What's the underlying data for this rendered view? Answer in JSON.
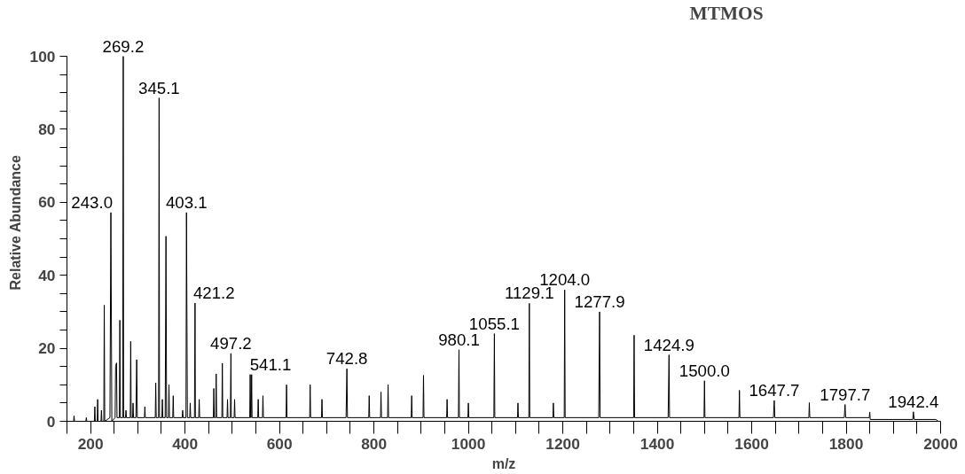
{
  "chart_data": {
    "type": "line",
    "title": "MTMOS",
    "xlabel": "m/z",
    "ylabel": "Relative Abundance",
    "xlim": [
      150,
      2000
    ],
    "xticks": [
      {
        "value": 150,
        "label": null
      },
      200,
      {
        "value": 250,
        "label": null
      },
      {
        "value": 300,
        "label": null
      },
      {
        "value": 350,
        "label": null
      },
      400,
      {
        "value": 450,
        "label": null
      },
      {
        "value": 500,
        "label": null
      },
      {
        "value": 550,
        "label": null
      },
      600,
      {
        "value": 650,
        "label": null
      },
      {
        "value": 700,
        "label": null
      },
      {
        "value": 750,
        "label": null
      },
      800,
      {
        "value": 850,
        "label": null
      },
      {
        "value": 900,
        "label": null
      },
      {
        "value": 950,
        "label": null
      },
      1000,
      {
        "value": 1050,
        "label": null
      },
      {
        "value": 1100,
        "label": null
      },
      {
        "value": 1150,
        "label": null
      },
      1200,
      {
        "value": 1250,
        "label": null
      },
      {
        "value": 1300,
        "label": null
      },
      {
        "value": 1350,
        "label": null
      },
      1400,
      {
        "value": 1450,
        "label": null
      },
      {
        "value": 1500,
        "label": null
      },
      {
        "value": 1550,
        "label": null
      },
      1600,
      {
        "value": 1650,
        "label": null
      },
      {
        "value": 1700,
        "label": null
      },
      {
        "value": 1750,
        "label": null
      },
      1800,
      {
        "value": 1850,
        "label": null
      },
      {
        "value": 1900,
        "label": null
      },
      {
        "value": 1950,
        "label": null
      },
      2000
    ],
    "ylim": [
      0,
      100
    ],
    "yticks": [
      0,
      {
        "value": 5,
        "label": null
      },
      {
        "value": 10,
        "label": null
      },
      {
        "value": 15,
        "label": null
      },
      20,
      {
        "value": 25,
        "label": null
      },
      {
        "value": 30,
        "label": null
      },
      {
        "value": 35,
        "label": null
      },
      40,
      {
        "value": 45,
        "label": null
      },
      {
        "value": 50,
        "label": null
      },
      {
        "value": 55,
        "label": null
      },
      60,
      {
        "value": 65,
        "label": null
      },
      {
        "value": 70,
        "label": null
      },
      {
        "value": 75,
        "label": null
      },
      80,
      {
        "value": 85,
        "label": null
      },
      {
        "value": 90,
        "label": null
      },
      {
        "value": 95,
        "label": null
      },
      100
    ],
    "grid": false,
    "marker": "none",
    "line_style": "solid",
    "series": [
      {
        "color": "#000000",
        "x": [
          164,
          165,
          166,
          190,
          191,
          192,
          208,
          209,
          210,
          214,
          215,
          216,
          222,
          223,
          224,
          228,
          229,
          230,
          241,
          243,
          245,
          252,
          253,
          255,
          256,
          261,
          262,
          263,
          268,
          269.2,
          270,
          274,
          275,
          276,
          284,
          285,
          286,
          289,
          290,
          291,
          296,
          297.7,
          299,
          314,
          315,
          316,
          337,
          338,
          339,
          344,
          345.1,
          346,
          351,
          352,
          353,
          358,
          359.7,
          361,
          365,
          366,
          367,
          374,
          375,
          376,
          394,
          395,
          396,
          402,
          403.1,
          405,
          410,
          411,
          412,
          420,
          421.2,
          422,
          429,
          430,
          431,
          460,
          461,
          462,
          465,
          466,
          467,
          478,
          479,
          480,
          489,
          490,
          491,
          496,
          497.2,
          498,
          504,
          505,
          506,
          537,
          538,
          539,
          540,
          541.1,
          542,
          554,
          555,
          556,
          564,
          565,
          566,
          614,
          615,
          616,
          664,
          665,
          666,
          689,
          690,
          691,
          741,
          742.8,
          744,
          789,
          790,
          791,
          814,
          815,
          816,
          829,
          830,
          831,
          879,
          880,
          881,
          904,
          905,
          906,
          954,
          955,
          956,
          979,
          980.1,
          981,
          999,
          1000,
          1001,
          1054,
          1055.1,
          1056,
          1104,
          1105,
          1106,
          1128,
          1129.1,
          1130,
          1179,
          1180,
          1181,
          1203,
          1204.0,
          1205,
          1276,
          1277.9,
          1279,
          1350,
          1351,
          1352,
          1423,
          1424.9,
          1426,
          1499,
          1500.0,
          1501,
          1573,
          1574,
          1575,
          1646,
          1647.7,
          1649,
          1721,
          1722,
          1723,
          1796,
          1797.7,
          1799,
          1849,
          1850,
          1851,
          1941,
          1942.4,
          1944,
          1990,
          1995
        ],
        "values": [
          0,
          1.5,
          0,
          0,
          1,
          0,
          0,
          4,
          0,
          0,
          6,
          0,
          0,
          3,
          0,
          0,
          31.8,
          0,
          1,
          57.2,
          0,
          1,
          15,
          16,
          1,
          1,
          27.7,
          1,
          1,
          100,
          1,
          1,
          3,
          1,
          1,
          21.9,
          1,
          1,
          5,
          1,
          1,
          16.9,
          1,
          1,
          4,
          1,
          1,
          10.5,
          1,
          1,
          88.6,
          1,
          1,
          6,
          1,
          1,
          50.7,
          1,
          1,
          10,
          1,
          1,
          7,
          1,
          1,
          3,
          1,
          1,
          57.2,
          1,
          1,
          5,
          1,
          1,
          32.4,
          1,
          1,
          6,
          1,
          1,
          9,
          1,
          1,
          13,
          1,
          1,
          15.9,
          1,
          1,
          6,
          1,
          1,
          18.6,
          1,
          1,
          6,
          1,
          1,
          12.8,
          1,
          1,
          12.8,
          1,
          1,
          6,
          1,
          1,
          7,
          1,
          1,
          10,
          1,
          1,
          10,
          1,
          1,
          6,
          1,
          1,
          14.4,
          1,
          1,
          7,
          1,
          1,
          8,
          1,
          1,
          10,
          1,
          1,
          7,
          1,
          1,
          12.6,
          1,
          1,
          6,
          1,
          1,
          19.6,
          1,
          1,
          5,
          1,
          1,
          24.0,
          1,
          1,
          5,
          1,
          1,
          32.3,
          1,
          1,
          5,
          1,
          1,
          36.0,
          1,
          1,
          30.0,
          1,
          1,
          23.6,
          1,
          1,
          18.2,
          1,
          1,
          11.1,
          1,
          1,
          8.5,
          1,
          1,
          5.7,
          1,
          1,
          5.1,
          1,
          1,
          4.6,
          1,
          1,
          2.5,
          0.5,
          0.5,
          2.6,
          0.5,
          0.5,
          0
        ]
      }
    ],
    "annotations": [
      {
        "text": "243.0",
        "x": 243.0,
        "y": 57.2
      },
      {
        "text": "269.2",
        "x": 269.2,
        "y": 100
      },
      {
        "text": "345.1",
        "x": 345.1,
        "y": 88.6
      },
      {
        "text": "403.1",
        "x": 403.1,
        "y": 57.2
      },
      {
        "text": "421.2",
        "x": 421.2,
        "y": 32.4
      },
      {
        "text": "497.2",
        "x": 497.2,
        "y": 18.6
      },
      {
        "text": "541.1",
        "x": 541.1,
        "y": 12.8
      },
      {
        "text": "742.8",
        "x": 742.8,
        "y": 14.4
      },
      {
        "text": "980.1",
        "x": 980.1,
        "y": 19.6
      },
      {
        "text": "1055.1",
        "x": 1055.1,
        "y": 24.0
      },
      {
        "text": "1129.1",
        "x": 1129.1,
        "y": 32.3
      },
      {
        "text": "1204.0",
        "x": 1204.0,
        "y": 36.0
      },
      {
        "text": "1277.9",
        "x": 1277.9,
        "y": 30.0
      },
      {
        "text": "1424.9",
        "x": 1424.9,
        "y": 18.2
      },
      {
        "text": "1500.0",
        "x": 1500.0,
        "y": 11.1
      },
      {
        "text": "1647.7",
        "x": 1647.7,
        "y": 5.7
      },
      {
        "text": "1797.7",
        "x": 1797.7,
        "y": 4.6
      },
      {
        "text": "1942.4",
        "x": 1942.4,
        "y": 2.6
      }
    ]
  }
}
